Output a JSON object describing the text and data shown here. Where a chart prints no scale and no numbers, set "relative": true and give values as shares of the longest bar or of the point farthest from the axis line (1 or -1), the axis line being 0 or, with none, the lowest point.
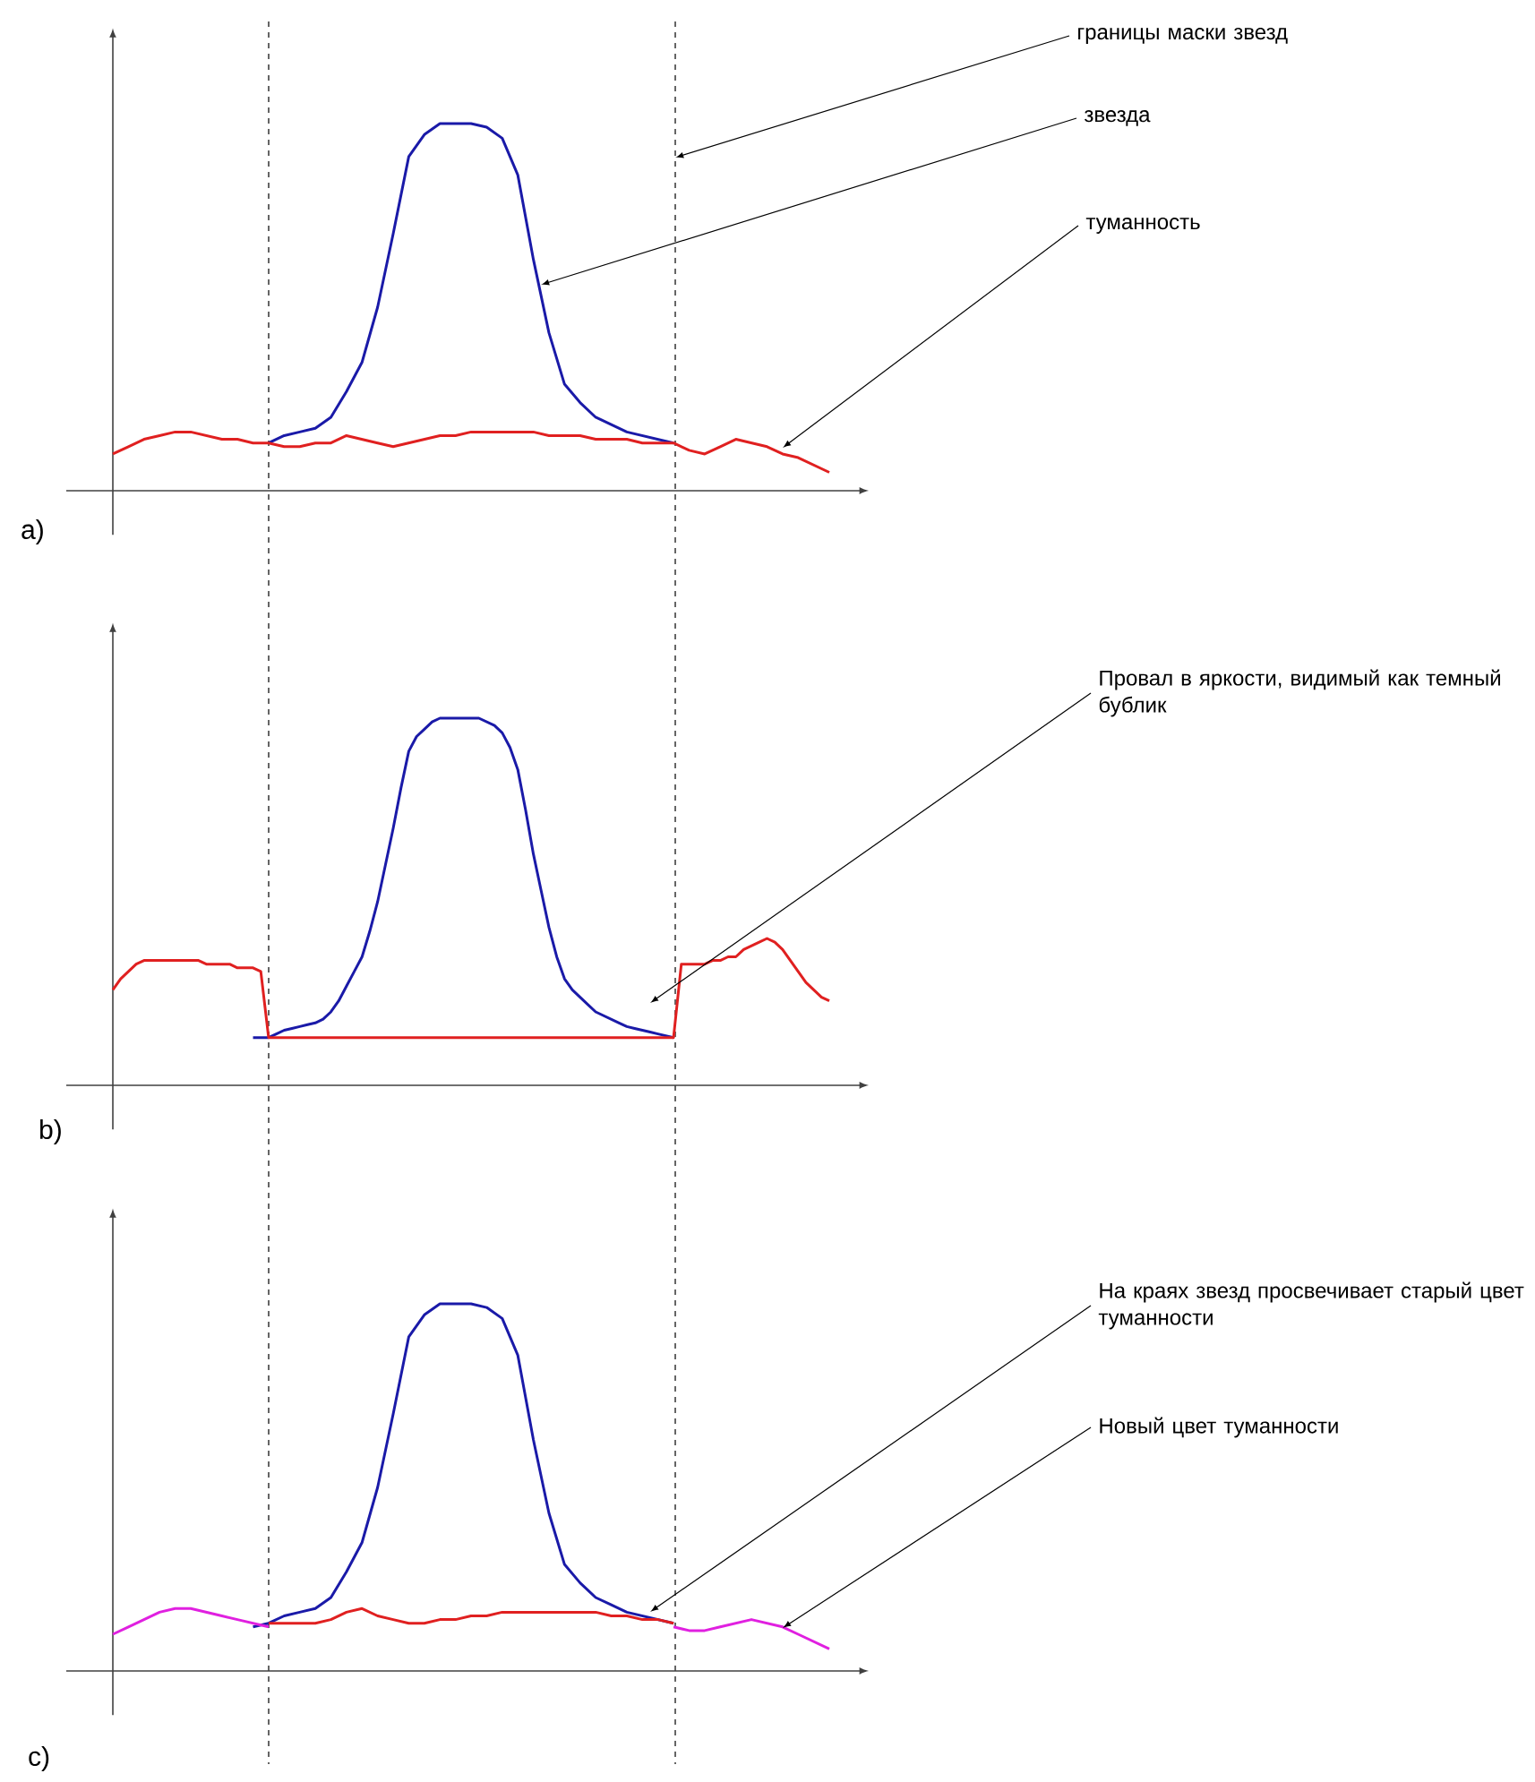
{
  "chart_data": [
    {
      "type": "line",
      "relative": true,
      "title": "a)",
      "categories": [
        null,
        null,
        null,
        null,
        null,
        null,
        null,
        null,
        null,
        null,
        null,
        null,
        null,
        null,
        null,
        null,
        null,
        null,
        null,
        null,
        null,
        null,
        null,
        null,
        null,
        null,
        null,
        null,
        null,
        null,
        null,
        null,
        null,
        null,
        null,
        null,
        null,
        null,
        null,
        null,
        null,
        null,
        null,
        null,
        null,
        null,
        null
      ],
      "series": [
        {
          "color": "#1a1aa8",
          "values": [
            null,
            null,
            null,
            null,
            null,
            null,
            null,
            null,
            null,
            null,
            0.13,
            0.15,
            0.16,
            0.17,
            0.2,
            0.27,
            0.35,
            0.5,
            0.7,
            0.91,
            0.97,
            1.0,
            1.0,
            1.0,
            0.99,
            0.96,
            0.86,
            0.63,
            0.43,
            0.29,
            0.24,
            0.2,
            0.18,
            0.16,
            0.15,
            0.14,
            0.13,
            null,
            null,
            null,
            null,
            null,
            null,
            null,
            null,
            null,
            null
          ]
        },
        {
          "color": "#e02020",
          "values": [
            0.1,
            0.12,
            0.14,
            0.15,
            0.16,
            0.16,
            0.15,
            0.14,
            0.14,
            0.13,
            0.13,
            0.12,
            0.12,
            0.13,
            0.13,
            0.15,
            0.14,
            0.13,
            0.12,
            0.13,
            0.14,
            0.15,
            0.15,
            0.16,
            0.16,
            0.16,
            0.16,
            0.16,
            0.15,
            0.15,
            0.15,
            0.14,
            0.14,
            0.14,
            0.13,
            0.13,
            0.13,
            0.11,
            0.1,
            0.12,
            0.14,
            0.13,
            0.12,
            0.1,
            0.09,
            0.07,
            0.05
          ]
        }
      ],
      "annotations": [
        "границы маски звезд",
        "звезда",
        "туманность"
      ]
    },
    {
      "type": "line",
      "relative": true,
      "title": "b)",
      "categories": [
        null,
        null,
        null,
        null,
        null,
        null,
        null,
        null,
        null,
        null,
        null,
        null,
        null,
        null,
        null,
        null,
        null,
        null,
        null,
        null,
        null,
        null,
        null,
        null,
        null,
        null,
        null,
        null,
        null,
        null,
        null,
        null,
        null,
        null,
        null,
        null,
        null,
        null,
        null,
        null,
        null,
        null,
        null,
        null,
        null,
        null,
        null,
        null,
        null,
        null,
        null,
        null,
        null,
        null,
        null,
        null,
        null,
        null,
        null,
        null,
        null,
        null,
        null,
        null,
        null,
        null,
        null,
        null,
        null,
        null,
        null,
        null,
        null,
        null,
        null,
        null,
        null,
        null,
        null,
        null,
        null,
        null,
        null,
        null,
        null,
        null,
        null,
        null,
        null,
        null,
        null,
        null,
        null
      ],
      "series": [
        {
          "color": "#1a1aa8",
          "values": [
            null,
            null,
            null,
            null,
            null,
            null,
            null,
            null,
            null,
            null,
            null,
            null,
            null,
            null,
            null,
            null,
            null,
            null,
            0.13,
            0.13,
            0.13,
            0.14,
            0.15,
            0.155,
            0.16,
            0.165,
            0.17,
            0.18,
            0.2,
            0.23,
            0.27,
            0.31,
            0.35,
            0.42,
            0.5,
            0.6,
            0.7,
            0.81,
            0.91,
            0.95,
            0.97,
            0.99,
            1.0,
            1.0,
            1.0,
            1.0,
            1.0,
            1.0,
            0.99,
            0.98,
            0.96,
            0.92,
            0.86,
            0.75,
            0.63,
            0.53,
            0.43,
            0.35,
            0.29,
            0.26,
            0.24,
            0.22,
            0.2,
            0.19,
            0.18,
            0.17,
            0.16,
            0.155,
            0.15,
            0.145,
            0.14,
            0.135,
            0.13,
            null,
            null,
            null,
            null,
            null,
            null,
            null,
            null,
            null,
            null,
            null,
            null,
            null,
            null,
            null,
            null,
            null,
            null,
            null,
            null
          ]
        },
        {
          "color": "#e02020",
          "values": [
            0.26,
            0.29,
            0.31,
            0.33,
            0.34,
            0.34,
            0.34,
            0.34,
            0.34,
            0.34,
            0.34,
            0.34,
            0.33,
            0.33,
            0.33,
            0.33,
            0.32,
            0.32,
            0.32,
            0.31,
            0.13,
            0.13,
            0.13,
            0.13,
            0.13,
            0.13,
            0.13,
            0.13,
            0.13,
            0.13,
            0.13,
            0.13,
            0.13,
            0.13,
            0.13,
            0.13,
            0.13,
            0.13,
            0.13,
            0.13,
            0.13,
            0.13,
            0.13,
            0.13,
            0.13,
            0.13,
            0.13,
            0.13,
            0.13,
            0.13,
            0.13,
            0.13,
            0.13,
            0.13,
            0.13,
            0.13,
            0.13,
            0.13,
            0.13,
            0.13,
            0.13,
            0.13,
            0.13,
            0.13,
            0.13,
            0.13,
            0.13,
            0.13,
            0.13,
            0.13,
            0.13,
            0.13,
            0.13,
            0.33,
            0.33,
            0.33,
            0.33,
            0.34,
            0.34,
            0.35,
            0.35,
            0.37,
            0.38,
            0.39,
            0.4,
            0.39,
            0.37,
            0.34,
            0.31,
            0.28,
            0.26,
            0.24,
            0.23
          ]
        }
      ],
      "annotations": [
        "Провал в яркости, видимый как темный бублик"
      ]
    },
    {
      "type": "line",
      "relative": true,
      "title": "c)",
      "categories": [
        null,
        null,
        null,
        null,
        null,
        null,
        null,
        null,
        null,
        null,
        null,
        null,
        null,
        null,
        null,
        null,
        null,
        null,
        null,
        null,
        null,
        null,
        null,
        null,
        null,
        null,
        null,
        null,
        null,
        null,
        null,
        null,
        null,
        null,
        null,
        null,
        null,
        null,
        null,
        null,
        null,
        null,
        null,
        null,
        null,
        null,
        null
      ],
      "series": [
        {
          "color": "#1a1aa8",
          "values": [
            null,
            null,
            null,
            null,
            null,
            null,
            null,
            null,
            null,
            0.12,
            0.13,
            0.15,
            0.16,
            0.17,
            0.2,
            0.27,
            0.35,
            0.5,
            0.7,
            0.91,
            0.97,
            1.0,
            1.0,
            1.0,
            0.99,
            0.96,
            0.86,
            0.63,
            0.43,
            0.29,
            0.24,
            0.2,
            0.18,
            0.16,
            0.15,
            0.14,
            0.13,
            null,
            null,
            null,
            null,
            null,
            null,
            null,
            null,
            null,
            null
          ]
        },
        {
          "color": "#e020e0",
          "values": [
            0.1,
            0.12,
            0.14,
            0.16,
            0.17,
            0.17,
            0.16,
            0.15,
            0.14,
            0.13,
            0.12,
            null,
            null,
            null,
            null,
            null,
            null,
            null,
            null,
            null,
            null,
            null,
            null,
            null,
            null,
            null,
            null,
            null,
            null,
            null,
            null,
            null,
            null,
            null,
            null,
            null,
            null,
            null,
            null,
            null,
            null,
            null,
            null,
            null,
            null,
            null,
            null
          ]
        },
        {
          "color": "#e02020",
          "values": [
            null,
            null,
            null,
            null,
            null,
            null,
            null,
            null,
            null,
            null,
            0.13,
            0.13,
            0.13,
            0.13,
            0.14,
            0.16,
            0.17,
            0.15,
            0.14,
            0.13,
            0.13,
            0.14,
            0.14,
            0.15,
            0.15,
            0.16,
            0.16,
            0.16,
            0.16,
            0.16,
            0.16,
            0.16,
            0.15,
            0.15,
            0.14,
            0.14,
            0.13,
            null,
            null,
            null,
            null,
            null,
            null,
            null,
            null,
            null,
            null
          ]
        },
        {
          "color": "#e020e0",
          "values": [
            null,
            null,
            null,
            null,
            null,
            null,
            null,
            null,
            null,
            null,
            null,
            null,
            null,
            null,
            null,
            null,
            null,
            null,
            null,
            null,
            null,
            null,
            null,
            null,
            null,
            null,
            null,
            null,
            null,
            null,
            null,
            null,
            null,
            null,
            null,
            null,
            0.12,
            0.11,
            0.11,
            0.12,
            0.13,
            0.14,
            0.13,
            0.12,
            0.1,
            0.08,
            0.06
          ]
        }
      ],
      "annotations": [
        "На краях звезд просвечивает старый цвет туманности",
        "Новый цвет туманности"
      ]
    }
  ]
}
